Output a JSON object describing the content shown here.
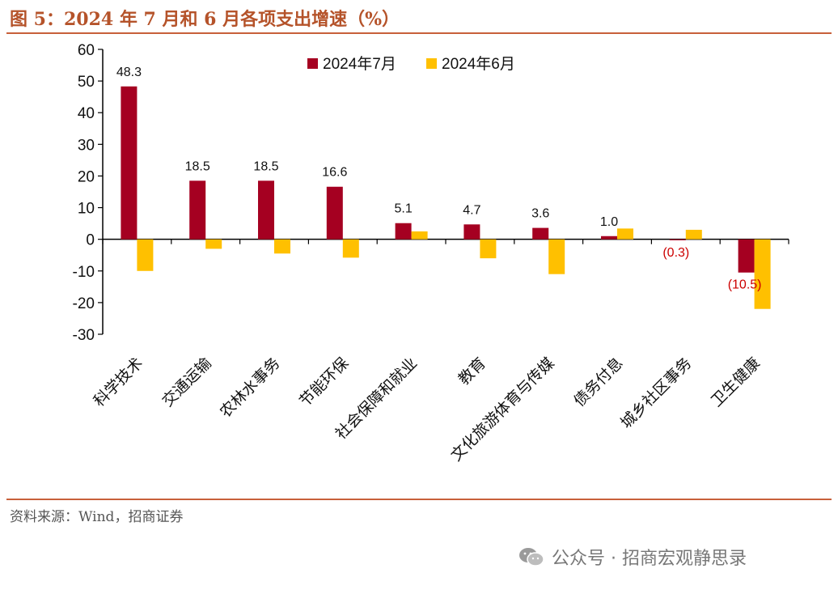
{
  "figure_title": "图 5：2024 年 7 月和 6 月各项支出增速（%）",
  "source": "资料来源：Wind，招商证券",
  "watermark": "公众号 · 招商宏观静思录",
  "colors": {
    "series1": "#a50021",
    "series2": "#ffc000",
    "title": "#b5532a",
    "negative_label": "#cc0000"
  },
  "chart_data": {
    "type": "bar",
    "title": "2024 年 7 月和 6 月各项支出增速（%）",
    "categories": [
      "科学技术",
      "交通运输",
      "农林水事务",
      "节能环保",
      "社会保障和就业",
      "教育",
      "文化旅游体育与传媒",
      "债务付息",
      "城乡社区事务",
      "卫生健康"
    ],
    "series": [
      {
        "name": "2024年7月",
        "values": [
          48.3,
          18.5,
          18.5,
          16.6,
          5.1,
          4.7,
          3.6,
          1.0,
          -0.3,
          -10.5
        ]
      },
      {
        "name": "2024年6月",
        "values": [
          -10.0,
          -3.0,
          -4.5,
          -5.8,
          2.5,
          -6.0,
          -11.0,
          3.4,
          3.0,
          -22.0
        ]
      }
    ],
    "data_labels": [
      "48.3",
      "18.5",
      "18.5",
      "16.6",
      "5.1",
      "4.7",
      "3.6",
      "1.0",
      "(0.3)",
      "(10.5)"
    ],
    "yticks": [
      "60",
      "50",
      "40",
      "30",
      "20",
      "10",
      "0",
      "-10",
      "-20",
      "-30"
    ],
    "ylim": [
      -30,
      60
    ],
    "legend_position": "top-center",
    "grid": false
  }
}
